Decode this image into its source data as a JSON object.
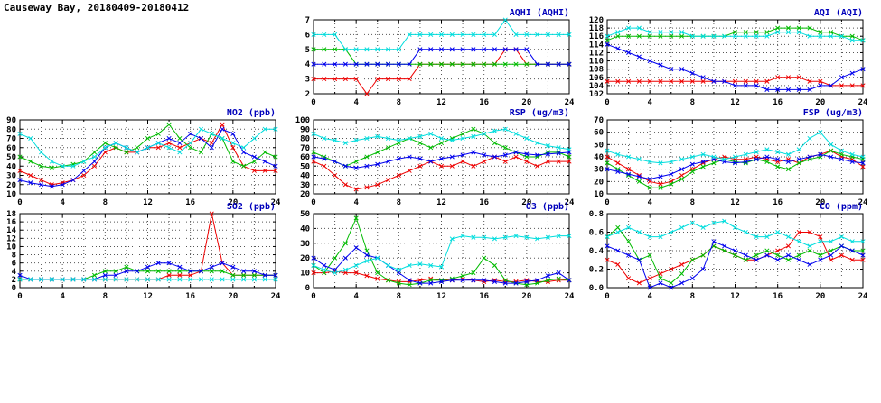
{
  "page": {
    "title": "Causeway Bay, 20180409-20180412"
  },
  "colors": {
    "red": "#ee0000",
    "green": "#00bb00",
    "blue": "#0000ee",
    "cyan": "#00dddd",
    "title": "#0000bb",
    "axis": "#000000"
  },
  "chart_data": [
    {
      "id": "aqhi",
      "type": "line",
      "title": "AQHI (AQHI)",
      "xlim": [
        0,
        24
      ],
      "xticks": [
        0,
        4,
        8,
        12,
        16,
        20,
        24
      ],
      "x_step": 1,
      "ylim": [
        2,
        7
      ],
      "ytick": 1,
      "grid": true,
      "legend": "none",
      "series": [
        {
          "name": "red",
          "color": "red",
          "values": [
            3,
            3,
            3,
            3,
            3,
            2,
            3,
            3,
            3,
            3,
            4,
            4,
            4,
            4,
            4,
            4,
            4,
            4,
            5,
            5,
            4,
            4,
            4,
            4,
            4
          ]
        },
        {
          "name": "green",
          "color": "green",
          "values": [
            5,
            5,
            5,
            5,
            4,
            4,
            4,
            4,
            4,
            4,
            4,
            4,
            4,
            4,
            4,
            4,
            4,
            4,
            4,
            4,
            4,
            4,
            4,
            4,
            4
          ]
        },
        {
          "name": "blue",
          "color": "blue",
          "values": [
            4,
            4,
            4,
            4,
            4,
            4,
            4,
            4,
            4,
            4,
            5,
            5,
            5,
            5,
            5,
            5,
            5,
            5,
            5,
            5,
            5,
            4,
            4,
            4,
            4
          ]
        },
        {
          "name": "cyan",
          "color": "cyan",
          "values": [
            6,
            6,
            6,
            5,
            5,
            5,
            5,
            5,
            5,
            6,
            6,
            6,
            6,
            6,
            6,
            6,
            6,
            6,
            7,
            6,
            6,
            6,
            6,
            6,
            6
          ]
        }
      ]
    },
    {
      "id": "aqi",
      "type": "line",
      "title": "AQI (AQI)",
      "xlim": [
        0,
        24
      ],
      "xticks": [
        0,
        4,
        8,
        12,
        16,
        20,
        24
      ],
      "x_step": 1,
      "ylim": [
        102,
        120
      ],
      "ytick": 2,
      "grid": true,
      "legend": "none",
      "series": [
        {
          "name": "red",
          "color": "red",
          "values": [
            105,
            105,
            105,
            105,
            105,
            105,
            105,
            105,
            105,
            105,
            105,
            105,
            105,
            105,
            105,
            105,
            106,
            106,
            106,
            105,
            105,
            104,
            104,
            104,
            104
          ]
        },
        {
          "name": "green",
          "color": "green",
          "values": [
            115,
            116,
            116,
            116,
            116,
            116,
            116,
            116,
            116,
            116,
            116,
            116,
            117,
            117,
            117,
            117,
            118,
            118,
            118,
            118,
            117,
            117,
            116,
            116,
            115
          ]
        },
        {
          "name": "blue",
          "color": "blue",
          "values": [
            114,
            113,
            112,
            111,
            110,
            109,
            108,
            108,
            107,
            106,
            105,
            105,
            104,
            104,
            104,
            103,
            103,
            103,
            103,
            103,
            104,
            104,
            106,
            107,
            108
          ]
        },
        {
          "name": "cyan",
          "color": "cyan",
          "values": [
            116,
            117,
            118,
            118,
            117,
            117,
            117,
            117,
            116,
            116,
            116,
            116,
            116,
            116,
            116,
            116,
            117,
            117,
            117,
            116,
            116,
            116,
            116,
            115,
            115
          ]
        }
      ]
    },
    {
      "id": "no2",
      "type": "line",
      "title": "NO2 (ppb)",
      "xlim": [
        0,
        24
      ],
      "xticks": [
        0,
        4,
        8,
        12,
        16,
        20,
        24
      ],
      "x_step": 1,
      "ylim": [
        10,
        90
      ],
      "ytick": 10,
      "grid": true,
      "legend": "none",
      "series": [
        {
          "name": "red",
          "color": "red",
          "values": [
            35,
            30,
            25,
            20,
            22,
            25,
            30,
            40,
            55,
            60,
            55,
            55,
            60,
            60,
            65,
            60,
            65,
            70,
            65,
            85,
            60,
            40,
            35,
            35,
            35
          ]
        },
        {
          "name": "green",
          "color": "green",
          "values": [
            50,
            45,
            40,
            38,
            40,
            42,
            45,
            55,
            65,
            60,
            55,
            60,
            70,
            75,
            85,
            70,
            60,
            55,
            75,
            70,
            45,
            40,
            45,
            55,
            50
          ]
        },
        {
          "name": "blue",
          "color": "blue",
          "values": [
            25,
            22,
            20,
            18,
            20,
            25,
            35,
            45,
            60,
            65,
            60,
            55,
            60,
            65,
            70,
            65,
            75,
            70,
            60,
            80,
            75,
            55,
            50,
            45,
            40
          ]
        },
        {
          "name": "cyan",
          "color": "cyan",
          "values": [
            75,
            70,
            55,
            45,
            40,
            40,
            45,
            50,
            60,
            65,
            60,
            55,
            60,
            65,
            60,
            55,
            65,
            80,
            75,
            70,
            65,
            60,
            70,
            80,
            80
          ]
        }
      ]
    },
    {
      "id": "rsp",
      "type": "line",
      "title": "RSP (ug/m3)",
      "xlim": [
        0,
        24
      ],
      "xticks": [
        0,
        4,
        8,
        12,
        16,
        20,
        24
      ],
      "x_step": 1,
      "ylim": [
        20,
        100
      ],
      "ytick": 10,
      "grid": true,
      "legend": "none",
      "series": [
        {
          "name": "red",
          "color": "red",
          "values": [
            55,
            50,
            40,
            30,
            25,
            27,
            30,
            35,
            40,
            45,
            50,
            55,
            50,
            50,
            55,
            50,
            55,
            60,
            55,
            60,
            55,
            50,
            55,
            55,
            55
          ]
        },
        {
          "name": "green",
          "color": "green",
          "values": [
            65,
            60,
            55,
            50,
            55,
            60,
            65,
            70,
            75,
            80,
            75,
            70,
            75,
            80,
            85,
            90,
            85,
            75,
            70,
            65,
            60,
            60,
            65,
            65,
            60
          ]
        },
        {
          "name": "blue",
          "color": "blue",
          "values": [
            60,
            58,
            55,
            50,
            48,
            50,
            52,
            55,
            58,
            60,
            58,
            55,
            58,
            60,
            62,
            65,
            62,
            60,
            62,
            65,
            63,
            62,
            63,
            64,
            65
          ]
        },
        {
          "name": "cyan",
          "color": "cyan",
          "values": [
            85,
            80,
            78,
            75,
            78,
            80,
            82,
            80,
            78,
            80,
            82,
            85,
            80,
            78,
            80,
            82,
            85,
            88,
            90,
            85,
            80,
            75,
            72,
            70,
            68
          ]
        }
      ]
    },
    {
      "id": "fsp",
      "type": "line",
      "title": "FSP (ug/m3)",
      "xlim": [
        0,
        24
      ],
      "xticks": [
        0,
        4,
        8,
        12,
        16,
        20,
        24
      ],
      "x_step": 1,
      "ylim": [
        10,
        70
      ],
      "ytick": 10,
      "grid": true,
      "legend": "none",
      "series": [
        {
          "name": "red",
          "color": "red",
          "values": [
            40,
            35,
            30,
            25,
            20,
            18,
            20,
            25,
            30,
            35,
            38,
            40,
            38,
            38,
            40,
            38,
            36,
            38,
            35,
            40,
            42,
            45,
            40,
            38,
            32
          ]
        },
        {
          "name": "green",
          "color": "green",
          "values": [
            35,
            30,
            25,
            20,
            15,
            15,
            18,
            22,
            28,
            32,
            35,
            38,
            36,
            35,
            38,
            36,
            32,
            30,
            35,
            38,
            40,
            45,
            42,
            40,
            38
          ]
        },
        {
          "name": "blue",
          "color": "blue",
          "values": [
            30,
            28,
            26,
            24,
            22,
            24,
            26,
            30,
            34,
            36,
            38,
            36,
            35,
            36,
            38,
            40,
            38,
            36,
            38,
            40,
            42,
            40,
            38,
            36,
            35
          ]
        },
        {
          "name": "cyan",
          "color": "cyan",
          "values": [
            45,
            42,
            40,
            38,
            36,
            35,
            36,
            38,
            40,
            42,
            40,
            38,
            40,
            42,
            44,
            46,
            44,
            42,
            46,
            55,
            60,
            50,
            45,
            42,
            40
          ]
        }
      ]
    },
    {
      "id": "so2",
      "type": "line",
      "title": "SO2 (ppb)",
      "xlim": [
        0,
        24
      ],
      "xticks": [
        0,
        4,
        8,
        12,
        16,
        20,
        24
      ],
      "x_step": 1,
      "ylim": [
        0,
        18
      ],
      "ytick": 2,
      "grid": true,
      "legend": "none",
      "series": [
        {
          "name": "red",
          "color": "red",
          "values": [
            2,
            2,
            2,
            2,
            2,
            2,
            2,
            2,
            2,
            2,
            2,
            2,
            2,
            2,
            3,
            3,
            3,
            4,
            18,
            6,
            3,
            3,
            3,
            3,
            3
          ]
        },
        {
          "name": "green",
          "color": "green",
          "values": [
            2,
            2,
            2,
            2,
            2,
            2,
            2,
            3,
            4,
            4,
            5,
            4,
            4,
            4,
            4,
            4,
            4,
            4,
            4,
            4,
            3,
            3,
            3,
            3,
            3
          ]
        },
        {
          "name": "blue",
          "color": "blue",
          "values": [
            3,
            2,
            2,
            2,
            2,
            2,
            2,
            2,
            3,
            3,
            4,
            4,
            5,
            6,
            6,
            5,
            4,
            4,
            5,
            6,
            5,
            4,
            4,
            3,
            3
          ]
        },
        {
          "name": "cyan",
          "color": "cyan",
          "values": [
            2,
            2,
            2,
            2,
            2,
            2,
            2,
            2,
            2,
            2,
            2,
            2,
            2,
            2,
            2,
            2,
            2,
            2,
            2,
            2,
            2,
            2,
            2,
            2,
            2
          ]
        }
      ]
    },
    {
      "id": "o3",
      "type": "line",
      "title": "O3 (ppb)",
      "xlim": [
        0,
        24
      ],
      "xticks": [
        0,
        4,
        8,
        12,
        16,
        20,
        24
      ],
      "x_step": 1,
      "ylim": [
        0,
        50
      ],
      "ytick": 10,
      "grid": true,
      "legend": "none",
      "series": [
        {
          "name": "red",
          "color": "red",
          "values": [
            10,
            10,
            11,
            10,
            10,
            8,
            6,
            5,
            4,
            4,
            5,
            6,
            5,
            5,
            6,
            5,
            4,
            5,
            4,
            4,
            5,
            4,
            4,
            5,
            5
          ]
        },
        {
          "name": "green",
          "color": "green",
          "values": [
            15,
            10,
            20,
            30,
            47,
            25,
            10,
            5,
            3,
            2,
            3,
            5,
            5,
            6,
            8,
            10,
            20,
            15,
            5,
            3,
            2,
            3,
            5,
            6,
            5
          ]
        },
        {
          "name": "blue",
          "color": "blue",
          "values": [
            20,
            15,
            12,
            20,
            27,
            22,
            20,
            15,
            10,
            5,
            3,
            3,
            4,
            5,
            5,
            5,
            5,
            4,
            3,
            3,
            4,
            5,
            8,
            10,
            5
          ]
        },
        {
          "name": "cyan",
          "color": "cyan",
          "values": [
            15,
            12,
            10,
            12,
            15,
            18,
            20,
            15,
            12,
            15,
            16,
            15,
            14,
            33,
            35,
            34,
            34,
            33,
            34,
            35,
            34,
            33,
            34,
            35,
            35
          ]
        }
      ]
    },
    {
      "id": "co",
      "type": "line",
      "title": "CO (ppm)",
      "xlim": [
        0,
        24
      ],
      "xticks": [
        0,
        4,
        8,
        12,
        16,
        20,
        24
      ],
      "x_step": 1,
      "ylim": [
        0,
        0.8
      ],
      "ytick": 0.2,
      "grid": true,
      "legend": "none",
      "series": [
        {
          "name": "red",
          "color": "red",
          "values": [
            0.3,
            0.25,
            0.1,
            0.05,
            0.1,
            0.15,
            0.2,
            0.25,
            0.3,
            0.35,
            0.45,
            0.4,
            0.35,
            0.3,
            0.3,
            0.35,
            0.4,
            0.45,
            0.6,
            0.6,
            0.55,
            0.3,
            0.35,
            0.3,
            0.3
          ]
        },
        {
          "name": "green",
          "color": "green",
          "values": [
            0.55,
            0.65,
            0.5,
            0.3,
            0.35,
            0.1,
            0.05,
            0.15,
            0.3,
            0.35,
            0.45,
            0.4,
            0.35,
            0.3,
            0.35,
            0.4,
            0.35,
            0.3,
            0.35,
            0.4,
            0.35,
            0.4,
            0.45,
            0.4,
            0.4
          ]
        },
        {
          "name": "blue",
          "color": "blue",
          "values": [
            0.45,
            0.4,
            0.35,
            0.3,
            0.0,
            0.05,
            0.0,
            0.05,
            0.1,
            0.2,
            0.5,
            0.45,
            0.4,
            0.35,
            0.3,
            0.35,
            0.3,
            0.35,
            0.3,
            0.25,
            0.3,
            0.35,
            0.45,
            0.4,
            0.35
          ]
        },
        {
          "name": "cyan",
          "color": "cyan",
          "values": [
            0.55,
            0.6,
            0.65,
            0.6,
            0.55,
            0.55,
            0.6,
            0.65,
            0.7,
            0.65,
            0.7,
            0.72,
            0.65,
            0.6,
            0.55,
            0.55,
            0.6,
            0.55,
            0.5,
            0.45,
            0.5,
            0.5,
            0.55,
            0.5,
            0.5
          ]
        }
      ]
    }
  ]
}
